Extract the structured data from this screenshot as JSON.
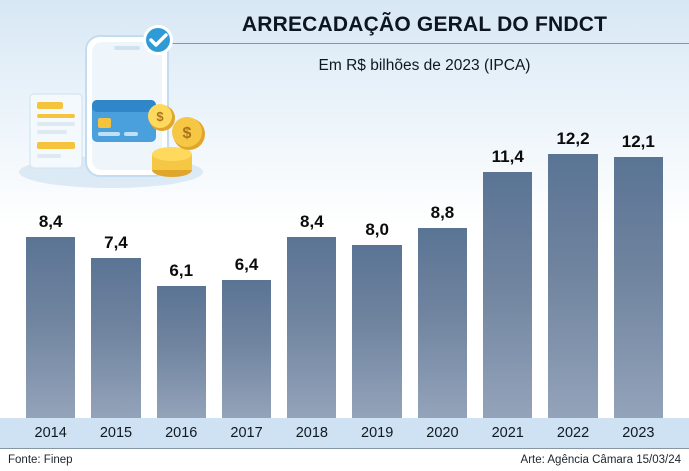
{
  "header": {
    "title": "ARRECADAÇÃO GERAL DO FNDCT",
    "subtitle": "Em R$ bilhões de 2023 (IPCA)"
  },
  "footer": {
    "source": "Fonte: Finep",
    "credit": "Arte: Agência Câmara 15/03/24"
  },
  "colors": {
    "bar_top": "#5a7494",
    "bar_bottom": "#93a3ba",
    "year_band": "#cfe2f3",
    "background_top": "#d7e7f4",
    "title_text": "#0d1520"
  },
  "chart_data": {
    "type": "bar",
    "categories": [
      "2014",
      "2015",
      "2016",
      "2017",
      "2018",
      "2019",
      "2020",
      "2021",
      "2022",
      "2023"
    ],
    "values": [
      8.4,
      7.4,
      6.1,
      6.4,
      8.4,
      8.0,
      8.8,
      11.4,
      12.2,
      12.1
    ],
    "value_labels": [
      "8,4",
      "7,4",
      "6,1",
      "6,4",
      "8,4",
      "8,0",
      "8,8",
      "11,4",
      "12,2",
      "12,1"
    ],
    "title": "ARRECADAÇÃO GERAL DO FNDCT",
    "subtitle": "Em R$ bilhões de 2023 (IPCA)",
    "xlabel": "",
    "ylabel": "",
    "ylim": [
      0,
      13
    ],
    "grid": false,
    "legend": false,
    "bar_unit": "R$ bilhões de 2023 (IPCA)"
  }
}
